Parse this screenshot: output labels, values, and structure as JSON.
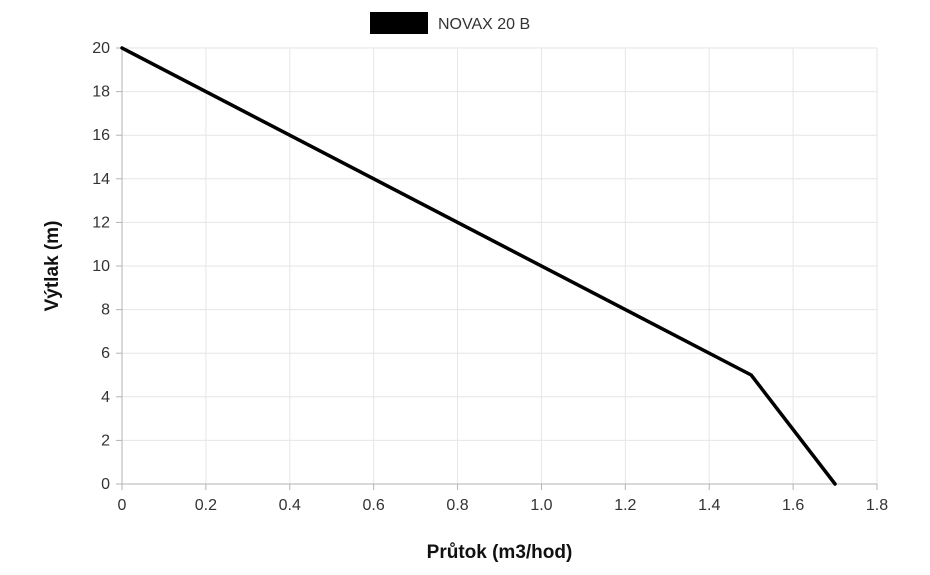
{
  "chart_data": {
    "type": "line",
    "xlabel": "Průtok (m3/hod)",
    "ylabel": "Výtlak (m)",
    "xlim": [
      0,
      1.8
    ],
    "ylim": [
      0,
      20
    ],
    "x_ticks": [
      "0",
      "0.2",
      "0.4",
      "0.6",
      "0.8",
      "1.0",
      "1.2",
      "1.4",
      "1.6",
      "1.8"
    ],
    "y_ticks": [
      "0",
      "2",
      "4",
      "6",
      "8",
      "10",
      "12",
      "14",
      "16",
      "18",
      "20"
    ],
    "grid": true,
    "legend_position": "top-center",
    "series": [
      {
        "name": "NOVAX 20 B",
        "color": "#000000",
        "points": [
          {
            "x": 0,
            "y": 20
          },
          {
            "x": 1.5,
            "y": 5
          },
          {
            "x": 1.7,
            "y": 0
          }
        ]
      }
    ]
  }
}
